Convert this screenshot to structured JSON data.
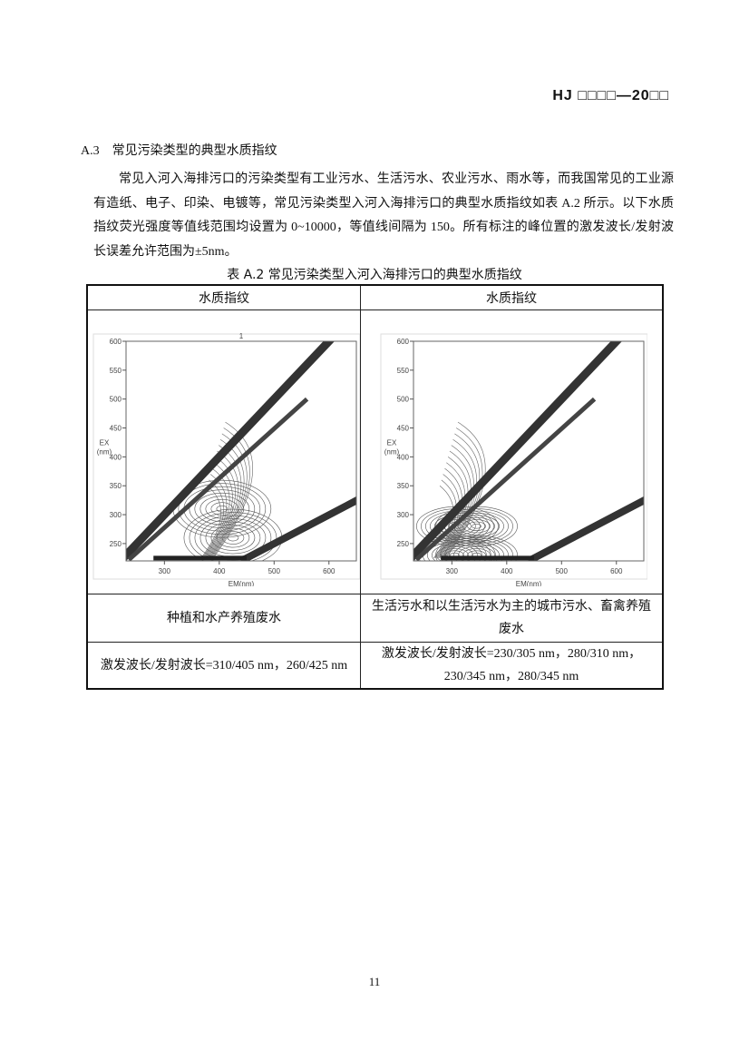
{
  "header": {
    "code": "HJ □□□□—20□□"
  },
  "section": {
    "number": "A.3",
    "title": "常见污染类型的典型水质指纹"
  },
  "paragraph": "常见入河入海排污口的污染类型有工业污水、生活污水、农业污水、雨水等，而我国常见的工业源有造纸、电子、印染、电镀等，常见污染类型入河入海排污口的典型水质指纹如表 A.2 所示。以下水质指纹荧光强度等值线范围均设置为 0~10000，等值线间隔为 150。所有标注的峰位置的激发波长/发射波长误差允许范围为±5nm。",
  "table": {
    "caption": "表 A.2 常见污染类型入河入海排污口的典型水质指纹",
    "headers": [
      "水质指纹",
      "水质指纹"
    ],
    "types": [
      "种植和水产养殖废水",
      "生活污水和以生活污水为主的城市污水、畜禽养殖废水"
    ],
    "peaks": [
      "激发波长/发射波长=310/405 nm，260/425 nm",
      "激发波长/发射波长=230/305 nm，280/310 nm，230/345 nm，280/345 nm"
    ]
  },
  "chart_data": [
    {
      "type": "heatmap",
      "title": "1",
      "xlabel": "EM(nm)",
      "ylabel": "EX\n(nm)",
      "xlim": [
        230,
        650
      ],
      "ylim": [
        220,
        600
      ],
      "xticks": [
        300,
        400,
        500,
        600
      ],
      "yticks": [
        250,
        300,
        350,
        400,
        450,
        500,
        550,
        600
      ],
      "peaks": [
        {
          "ex": 310,
          "em": 405
        },
        {
          "ex": 260,
          "em": 425
        }
      ]
    },
    {
      "type": "heatmap",
      "title": "",
      "xlabel": "EM(nm)",
      "ylabel": "EX\n(nm)",
      "xlim": [
        230,
        650
      ],
      "ylim": [
        220,
        600
      ],
      "xticks": [
        300,
        400,
        500,
        600
      ],
      "yticks": [
        250,
        300,
        350,
        400,
        450,
        500,
        550,
        600
      ],
      "peaks": [
        {
          "ex": 230,
          "em": 305
        },
        {
          "ex": 280,
          "em": 310
        },
        {
          "ex": 230,
          "em": 345
        },
        {
          "ex": 280,
          "em": 345
        }
      ]
    }
  ],
  "page_number": "11"
}
